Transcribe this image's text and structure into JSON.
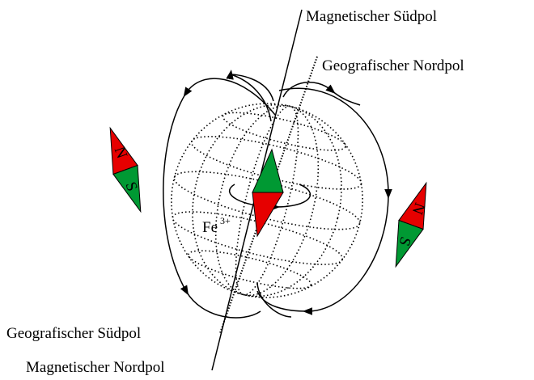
{
  "labels": {
    "magnetic_south": "Magnetischer Südpol",
    "geographic_north": "Geografischer Nordpol",
    "geographic_south": "Geografischer Südpol",
    "magnetic_north": "Magnetischer Nordpol",
    "iron": {
      "symbol": "Fe",
      "charge": "3+"
    }
  },
  "compasses": [
    {
      "north": "N",
      "south": "S"
    },
    {
      "north": "N",
      "south": "S"
    }
  ]
}
